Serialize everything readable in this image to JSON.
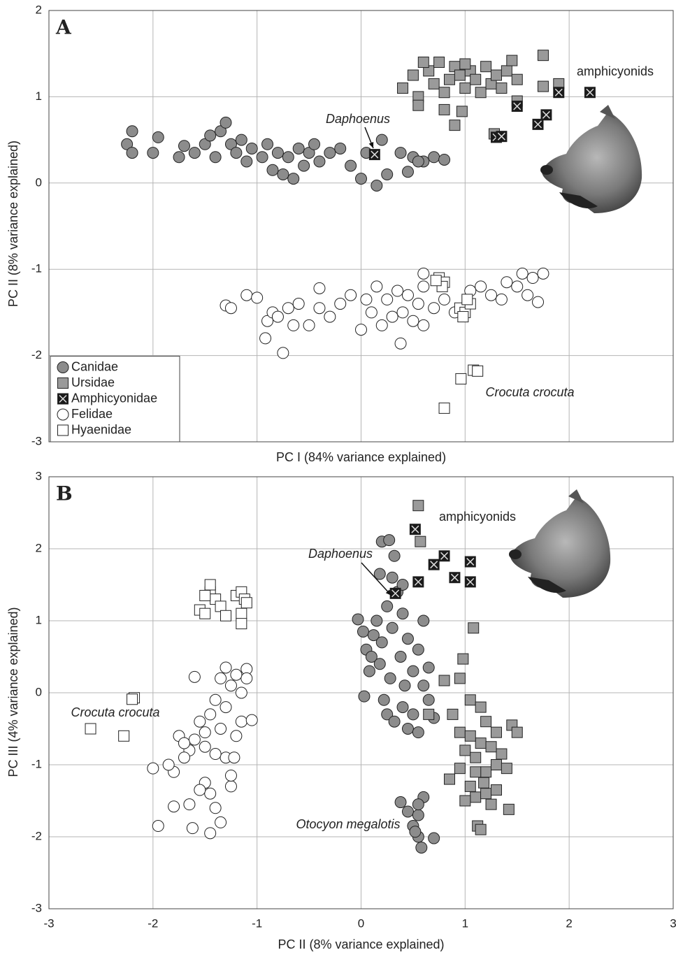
{
  "chart_data": [
    {
      "type": "scatter",
      "panel_label": "A",
      "x_label": "PC I (84% variance explained)",
      "y_label": "PC II (8% variance explained)",
      "xlim": [
        -3,
        3
      ],
      "ylim": [
        -3,
        2
      ],
      "xticks": [
        -3,
        -2,
        -1,
        0,
        1,
        2,
        3
      ],
      "yticks": [
        -3,
        -2,
        -1,
        0,
        1,
        2
      ],
      "show_xtick_labels": false,
      "grid": true,
      "legend": "lower left",
      "annotations": [
        "amphicyonids",
        "Daphoenus",
        "Crocuta crocuta"
      ],
      "series": [
        {
          "name": "Canidae",
          "marker": "circle",
          "color": "#8c8c8c",
          "x": [
            -2.2,
            -2.25,
            -2.2,
            -2.0,
            -1.95,
            -1.75,
            -1.7,
            -1.6,
            -1.5,
            -1.45,
            -1.4,
            -1.35,
            -1.3,
            -1.25,
            -1.2,
            -1.15,
            -1.1,
            -1.05,
            -0.95,
            -0.9,
            -0.85,
            -0.8,
            -0.75,
            -0.7,
            -0.65,
            -0.6,
            -0.55,
            -0.5,
            -0.45,
            -0.4,
            -0.3,
            -0.2,
            -0.1,
            0,
            0.05,
            0.2,
            0.15,
            0.25,
            0.38,
            0.45,
            0.5,
            0.6,
            0.7,
            0.8,
            0.55
          ],
          "y": [
            0.6,
            0.45,
            0.35,
            0.35,
            0.53,
            0.3,
            0.43,
            0.35,
            0.45,
            0.55,
            0.3,
            0.6,
            0.7,
            0.45,
            0.35,
            0.5,
            0.25,
            0.4,
            0.3,
            0.45,
            0.15,
            0.35,
            0.1,
            0.3,
            0.05,
            0.4,
            0.2,
            0.35,
            0.45,
            0.25,
            0.35,
            0.4,
            0.2,
            0.05,
            0.35,
            0.5,
            -0.03,
            0.1,
            0.35,
            0.13,
            0.3,
            0.25,
            0.3,
            0.27,
            0.25
          ]
        },
        {
          "name": "Ursidae",
          "marker": "square",
          "color": "#9a9a9a",
          "x": [
            0.4,
            0.5,
            0.55,
            0.55,
            0.65,
            0.7,
            0.75,
            0.8,
            0.85,
            0.9,
            0.95,
            1.0,
            1.05,
            1.1,
            1.15,
            1.2,
            1.25,
            1.3,
            1.35,
            1.4,
            1.45,
            1.5,
            1.5,
            0.8,
            0.9,
            0.97,
            1.28,
            1.75,
            1.75,
            1.9,
            0.6,
            1.0
          ],
          "y": [
            1.1,
            1.25,
            1.0,
            0.9,
            1.3,
            1.15,
            1.4,
            1.05,
            1.2,
            1.35,
            1.25,
            1.1,
            1.3,
            1.2,
            1.05,
            1.35,
            1.15,
            1.25,
            1.1,
            1.3,
            1.42,
            1.2,
            0.95,
            0.85,
            0.67,
            0.83,
            0.57,
            1.48,
            1.12,
            1.15,
            1.4,
            1.38
          ]
        },
        {
          "name": "Amphicyonidae",
          "marker": "cross-square",
          "color": "#1a1a1a",
          "x": [
            0.13,
            1.3,
            1.35,
            1.5,
            1.7,
            1.78,
            1.9,
            2.2
          ],
          "y": [
            0.33,
            0.53,
            0.54,
            0.89,
            0.68,
            0.79,
            1.05,
            1.05
          ]
        },
        {
          "name": "Felidae",
          "marker": "circle",
          "color": "#ffffff",
          "x": [
            -1.3,
            -1.25,
            -1.1,
            -1.0,
            -0.9,
            -0.92,
            -0.85,
            -0.75,
            -0.8,
            -0.7,
            -0.65,
            -0.6,
            -0.5,
            -0.4,
            -0.4,
            -0.3,
            -0.2,
            -0.1,
            0,
            0.05,
            0.1,
            0.15,
            0.2,
            0.25,
            0.3,
            0.35,
            0.38,
            0.4,
            0.45,
            0.5,
            0.55,
            0.6,
            0.6,
            0.7,
            0.8,
            0.9,
            1.05,
            1.15,
            1.25,
            1.35,
            1.4,
            1.5,
            1.55,
            1.6,
            1.65,
            1.75,
            1.7,
            0.6
          ],
          "y": [
            -1.42,
            -1.45,
            -1.3,
            -1.33,
            -1.6,
            -1.8,
            -1.5,
            -1.97,
            -1.55,
            -1.45,
            -1.65,
            -1.4,
            -1.65,
            -1.45,
            -1.22,
            -1.55,
            -1.4,
            -1.3,
            -1.7,
            -1.35,
            -1.5,
            -1.2,
            -1.65,
            -1.35,
            -1.55,
            -1.25,
            -1.86,
            -1.5,
            -1.3,
            -1.6,
            -1.4,
            -1.2,
            -1.65,
            -1.45,
            -1.35,
            -1.5,
            -1.25,
            -1.2,
            -1.3,
            -1.35,
            -1.15,
            -1.2,
            -1.05,
            -1.3,
            -1.1,
            -1.05,
            -1.38,
            -1.05
          ]
        },
        {
          "name": "Hyaenidae",
          "marker": "square",
          "color": "#ffffff",
          "x": [
            0.75,
            0.8,
            0.78,
            0.72,
            0.95,
            1.0,
            1.05,
            0.98,
            1.02,
            1.08,
            1.12,
            0.96,
            0.8
          ],
          "y": [
            -1.1,
            -1.15,
            -1.2,
            -1.13,
            -1.45,
            -1.5,
            -1.4,
            -1.55,
            -1.35,
            -2.17,
            -2.18,
            -2.27,
            -2.61
          ]
        }
      ]
    },
    {
      "type": "scatter",
      "panel_label": "B",
      "x_label": "PC II (8% variance explained)",
      "y_label": "PC III (4% variance explained)",
      "xlim": [
        -3,
        3
      ],
      "ylim": [
        -3,
        3
      ],
      "xticks": [
        -3,
        -2,
        -1,
        0,
        1,
        2,
        3
      ],
      "yticks": [
        -3,
        -2,
        -1,
        0,
        1,
        2,
        3
      ],
      "show_xtick_labels": true,
      "grid": true,
      "annotations": [
        "amphicyonids",
        "Daphoenus",
        "Crocuta crocuta",
        "Otocyon megalotis"
      ],
      "series": [
        {
          "marker": "circle",
          "color": "#8c8c8c",
          "x": [
            0.02,
            0.05,
            0.08,
            0.1,
            0.12,
            0.15,
            0.18,
            0.2,
            0.22,
            0.25,
            0.25,
            0.28,
            0.3,
            0.32,
            0.35,
            0.38,
            0.4,
            0.4,
            0.42,
            0.45,
            0.45,
            0.5,
            0.5,
            0.55,
            0.55,
            0.6,
            0.3,
            0.2,
            0.27,
            0.32,
            0.4,
            0.65,
            0.65,
            0.7,
            0.6,
            0.18,
            -0.03,
            0.03,
            0.38,
            0.45,
            0.55,
            0.6,
            0.5,
            0.55,
            0.58,
            0.7,
            0.55,
            0.52
          ],
          "y": [
            0.85,
            0.6,
            0.3,
            0.5,
            0.8,
            1.0,
            0.4,
            0.7,
            -0.1,
            1.2,
            -0.3,
            0.2,
            0.9,
            -0.4,
            1.4,
            0.5,
            -0.2,
            1.1,
            0.1,
            -0.5,
            0.75,
            0.3,
            -0.3,
            0.6,
            -0.55,
            0.1,
            1.6,
            2.1,
            2.12,
            1.9,
            1.5,
            0.35,
            -0.1,
            -0.35,
            1.0,
            1.65,
            1.02,
            -0.05,
            -1.52,
            -1.65,
            -1.7,
            -1.45,
            -1.85,
            -2.0,
            -2.15,
            -2.02,
            -1.55,
            -1.93
          ]
        },
        {
          "marker": "square",
          "color": "#9a9a9a",
          "x": [
            0.55,
            0.57,
            1.08,
            0.98,
            0.8,
            0.95,
            0.65,
            0.88,
            1.05,
            1.15,
            1.2,
            1.3,
            1.45,
            1.5,
            0.95,
            1.0,
            1.1,
            1.15,
            1.2,
            1.3,
            1.35,
            1.4,
            0.85,
            0.95,
            1.05,
            1.1,
            1.0,
            1.2,
            1.25,
            1.3,
            1.42,
            1.12,
            1.15,
            1.05,
            1.25,
            1.1,
            1.18
          ],
          "y": [
            2.6,
            2.1,
            0.9,
            0.47,
            0.17,
            0.2,
            -0.3,
            -0.3,
            -0.1,
            -0.2,
            -0.4,
            -0.55,
            -0.45,
            -0.55,
            -0.55,
            -0.8,
            -0.9,
            -0.7,
            -1.1,
            -1.0,
            -0.85,
            -1.05,
            -1.2,
            -1.05,
            -1.3,
            -1.45,
            -1.5,
            -1.4,
            -1.55,
            -1.35,
            -1.62,
            -1.85,
            -1.9,
            -0.6,
            -0.75,
            -1.1,
            -1.25
          ]
        },
        {
          "marker": "cross-square",
          "color": "#1a1a1a",
          "x": [
            0.52,
            0.55,
            0.7,
            0.8,
            0.9,
            1.05,
            1.05,
            0.33
          ],
          "y": [
            2.27,
            1.54,
            1.78,
            1.9,
            1.6,
            1.82,
            1.54,
            1.38
          ]
        },
        {
          "marker": "circle",
          "color": "#ffffff",
          "x": [
            -1.1,
            -1.1,
            -1.15,
            -1.2,
            -1.25,
            -1.3,
            -1.35,
            -1.3,
            -1.4,
            -1.45,
            -1.5,
            -1.55,
            -1.6,
            -1.65,
            -1.7,
            -1.75,
            -1.8,
            -1.85,
            -1.6,
            -1.5,
            -1.45,
            -1.55,
            -1.4,
            -1.35,
            -1.25,
            -1.2,
            -1.15,
            -1.3,
            -1.4,
            -1.95,
            -1.8,
            -1.62,
            -1.45,
            -1.25,
            -1.35,
            -1.5,
            -1.7,
            -1.05,
            -1.22,
            -1.65,
            -2.0
          ],
          "y": [
            0.33,
            0.2,
            0.0,
            0.25,
            0.1,
            -0.2,
            0.2,
            0.35,
            -0.1,
            -0.3,
            -0.55,
            -0.4,
            -0.65,
            -0.8,
            -0.9,
            -0.6,
            -1.1,
            -1.0,
            0.22,
            -1.25,
            -1.4,
            -1.35,
            -1.6,
            -1.8,
            -1.3,
            -0.6,
            -0.4,
            -0.9,
            -0.85,
            -1.85,
            -1.58,
            -1.88,
            -1.95,
            -1.15,
            -0.5,
            -0.75,
            -0.7,
            -0.38,
            -0.9,
            -1.55,
            -1.05
          ]
        },
        {
          "marker": "square",
          "color": "#ffffff",
          "x": [
            -1.55,
            -1.5,
            -1.45,
            -1.45,
            -1.4,
            -1.35,
            -1.3,
            -1.2,
            -1.15,
            -1.12,
            -1.15,
            -1.1,
            -1.15,
            -1.5,
            -2.18,
            -2.2,
            -2.6,
            -2.28
          ],
          "y": [
            1.15,
            1.1,
            1.4,
            1.5,
            1.3,
            1.2,
            1.07,
            1.35,
            1.4,
            1.3,
            1.1,
            1.25,
            0.96,
            1.35,
            -0.07,
            -0.09,
            -0.5,
            -0.6
          ]
        }
      ]
    }
  ]
}
